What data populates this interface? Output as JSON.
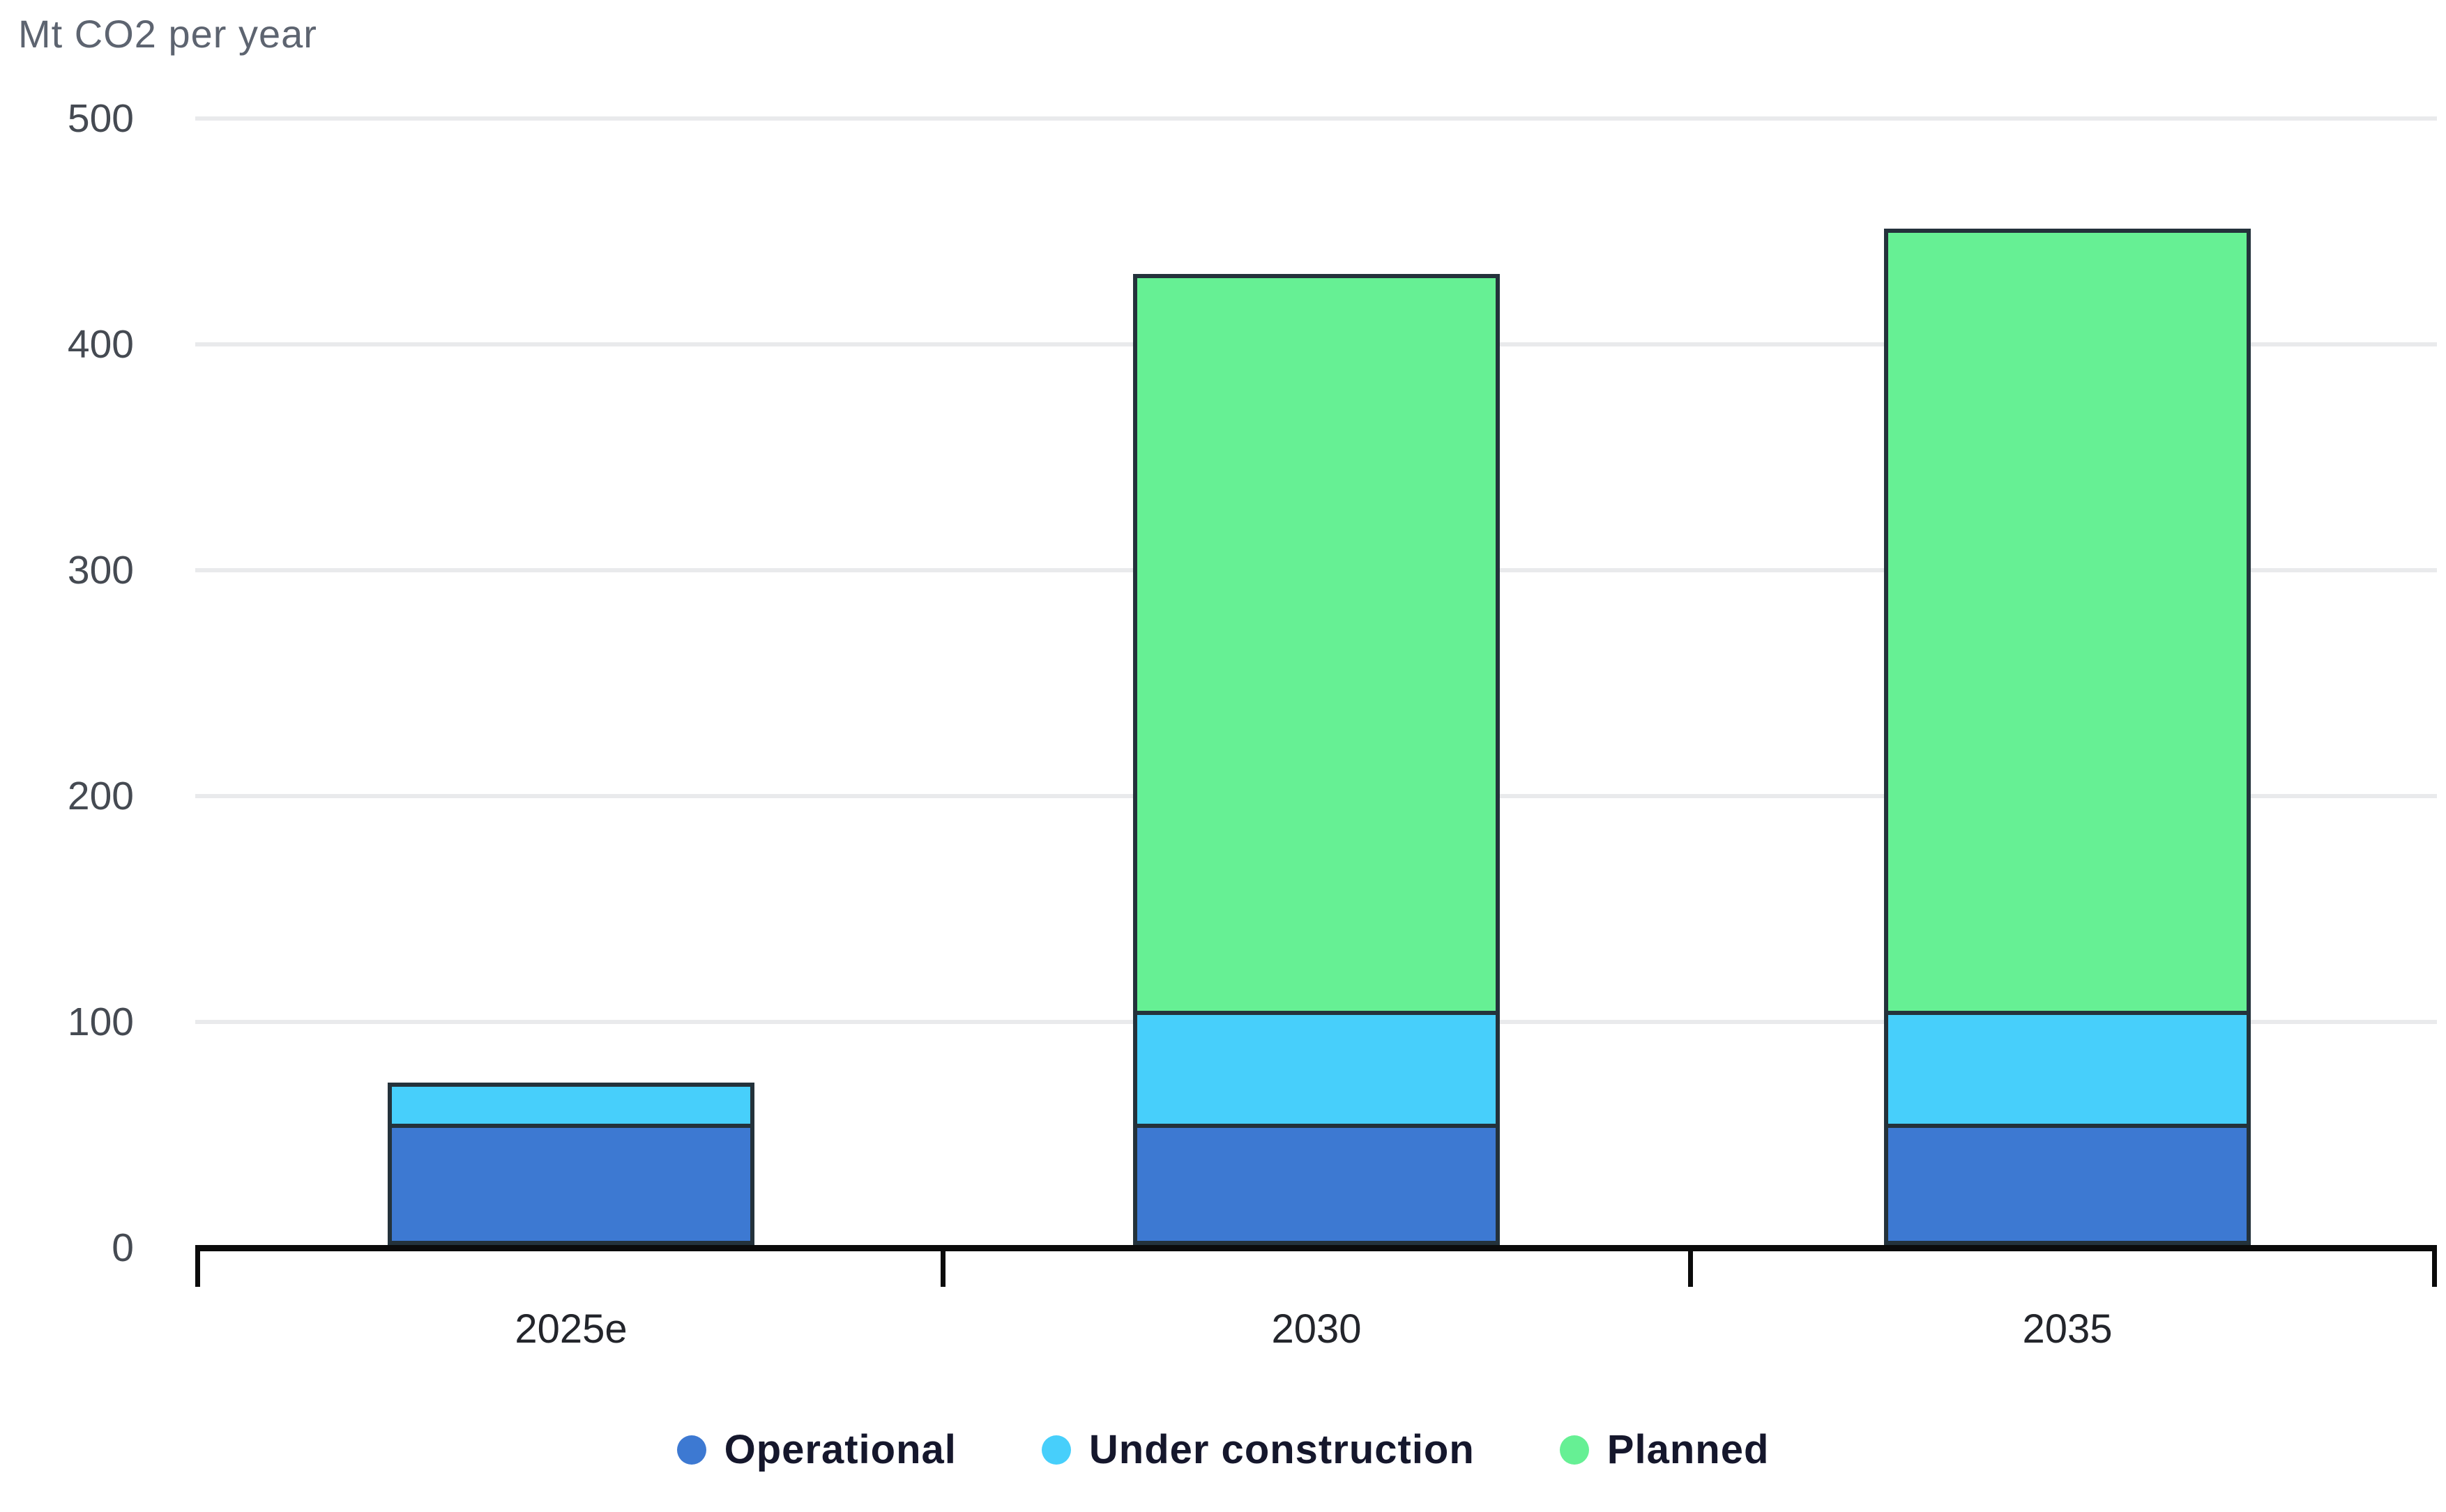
{
  "chart_data": {
    "type": "bar",
    "stacked": true,
    "title": "",
    "ylabel": "Mt CO2 per year",
    "xlabel": "",
    "categories": [
      "2025e",
      "2030",
      "2035"
    ],
    "series": [
      {
        "name": "Operational",
        "color": "#3d79d2",
        "values": [
          52,
          52,
          52
        ]
      },
      {
        "name": "Under construction",
        "color": "#47cffb",
        "values": [
          20,
          50,
          50
        ]
      },
      {
        "name": "Planned",
        "color": "#66f094",
        "values": [
          0,
          328,
          348
        ]
      }
    ],
    "stack_totals": [
      72,
      430,
      450
    ],
    "ylim": [
      0,
      500
    ],
    "yticks": [
      "500",
      "400",
      "300",
      "200",
      "100",
      "0"
    ],
    "grid": true,
    "legend_position": "bottom",
    "bar_border_color": "#24323b"
  }
}
